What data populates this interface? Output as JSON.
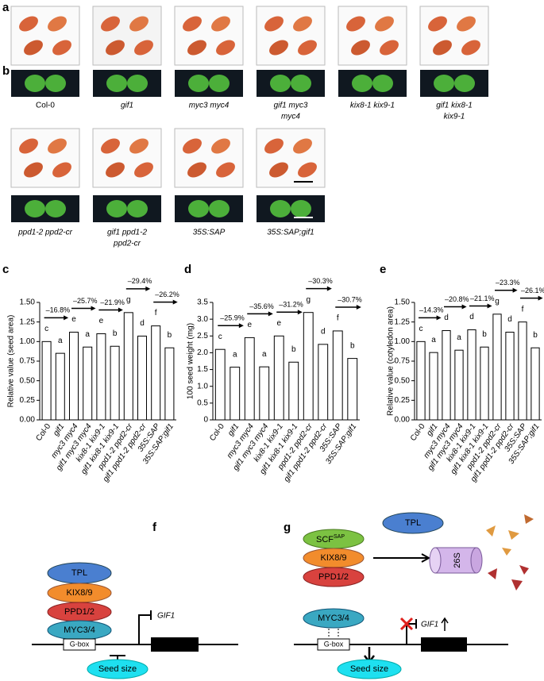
{
  "panels": [
    "a",
    "b",
    "c",
    "d",
    "e",
    "f",
    "g"
  ],
  "genotypes": [
    [
      "Col-0"
    ],
    [
      "gif1"
    ],
    [
      "myc3 myc4"
    ],
    [
      "gif1 myc3",
      "myc4"
    ],
    [
      "kix8-1 kix9-1"
    ],
    [
      "gif1 kix8-1",
      "kix9-1"
    ],
    [
      "ppd1-2 ppd2-cr"
    ],
    [
      "gif1 ppd1-2",
      "ppd2-cr"
    ],
    [
      "35S:SAP"
    ],
    [
      "35S:SAP;gif1"
    ]
  ],
  "chart_data": [
    {
      "type": "bar",
      "y_label": "Relative value (seed area)",
      "categories": [
        "Col-0",
        "gif1",
        "myc3 myc4",
        "gif1 myc3 myc4",
        "kix8-1 kix9-1",
        "gif1 kix8-1 kix9-1",
        "ppd1-2 ppd2-cr",
        "gif1 ppd1-2 ppd2-cr",
        "35S:SAP",
        "35S:SAP;gif1"
      ],
      "values": [
        1.0,
        0.85,
        1.12,
        0.93,
        1.1,
        0.94,
        1.37,
        1.07,
        1.2,
        0.92
      ],
      "letters": [
        "c",
        "a",
        "e",
        "a",
        "e",
        "b",
        "g",
        "d",
        "f",
        "b"
      ],
      "annotations": [
        "–16.8%",
        "–25.7%",
        "–21.9%",
        "–29.4%",
        "–26.2%"
      ],
      "ylim": [
        0,
        1.5
      ],
      "yticks": [
        {
          "value": 0,
          "label": "0.00"
        },
        {
          "value": 0.25,
          "label": "0.25"
        },
        {
          "value": 0.5,
          "label": "0.50"
        },
        {
          "value": 0.75,
          "label": "0.75"
        },
        {
          "value": 1.0,
          "label": "1.00"
        },
        {
          "value": 1.25,
          "label": "1.25"
        },
        {
          "value": 1.5,
          "label": "1.50"
        }
      ]
    },
    {
      "type": "bar",
      "y_label": "100 seed weight (mg)",
      "categories": [
        "Col-0",
        "gif1",
        "myc3 myc4",
        "gif1 myc3 myc4",
        "kix8-1 kix9-1",
        "gif1 kix8-1 kix9-1",
        "ppd1-2 ppd2-cr",
        "gif1 ppd1-2 ppd2-cr",
        "35S:SAP",
        "35S:SAP;gif1"
      ],
      "values": [
        2.1,
        1.57,
        2.45,
        1.58,
        2.5,
        1.72,
        3.2,
        2.25,
        2.65,
        1.83
      ],
      "letters": [
        "c",
        "a",
        "e",
        "a",
        "e",
        "b",
        "g",
        "d",
        "f",
        "b"
      ],
      "annotations": [
        "–25.9%",
        "–35.6%",
        "–31.2%",
        "–30.3%",
        "–30.7%"
      ],
      "ylim": [
        0,
        3.5
      ],
      "yticks": [
        0,
        0.5,
        {
          "value": 1,
          "label": "1.0"
        },
        1.5,
        {
          "value": 2,
          "label": "2.0"
        },
        2.5,
        {
          "value": 3,
          "label": "3.0"
        },
        3.5
      ]
    },
    {
      "type": "bar",
      "y_label": "Relative value (cotyledon area)",
      "categories": [
        "Col-0",
        "gif1",
        "myc3 myc4",
        "gif1 myc3 myc4",
        "kix8-1 kix9-1",
        "gif1 kix8-1 kix9-1",
        "ppd1-2 ppd2-cr",
        "gif1 ppd1-2 ppd2-cr",
        "35S:SAP",
        "35S:SAP;gif1"
      ],
      "values": [
        1.0,
        0.86,
        1.14,
        0.89,
        1.15,
        0.93,
        1.35,
        1.12,
        1.25,
        0.92
      ],
      "letters": [
        "c",
        "a",
        "d",
        "a",
        "d",
        "b",
        "g",
        "d",
        "f",
        "b"
      ],
      "annotations": [
        "–14.3%",
        "–20.8%",
        "–21.1%",
        "–23.3%",
        "–26.1%"
      ],
      "ylim": [
        0,
        1.5
      ],
      "yticks": [
        {
          "value": 0,
          "label": "0.00"
        },
        {
          "value": 0.25,
          "label": "0.25"
        },
        {
          "value": 0.5,
          "label": "0.50"
        },
        {
          "value": 0.75,
          "label": "0.75"
        },
        {
          "value": 1.0,
          "label": "1.00"
        },
        {
          "value": 1.25,
          "label": "1.25"
        },
        {
          "value": 1.5,
          "label": "1.50"
        }
      ]
    }
  ],
  "diagram_f": {
    "tpl": "TPL",
    "kix": "KIX8/9",
    "ppd": "PPD1/2",
    "myc": "MYC3/4",
    "gbox": "G-box",
    "gene": "GIF1",
    "output": "Seed size"
  },
  "diagram_g": {
    "scf": "SCF",
    "scf_sup": "SAP",
    "tpl": "TPL",
    "kix": "KIX8/9",
    "ppd": "PPD1/2",
    "proteasome": "26S",
    "myc": "MYC3/4",
    "gbox": "G-box",
    "gene": "GIF1",
    "output": "Seed size"
  }
}
